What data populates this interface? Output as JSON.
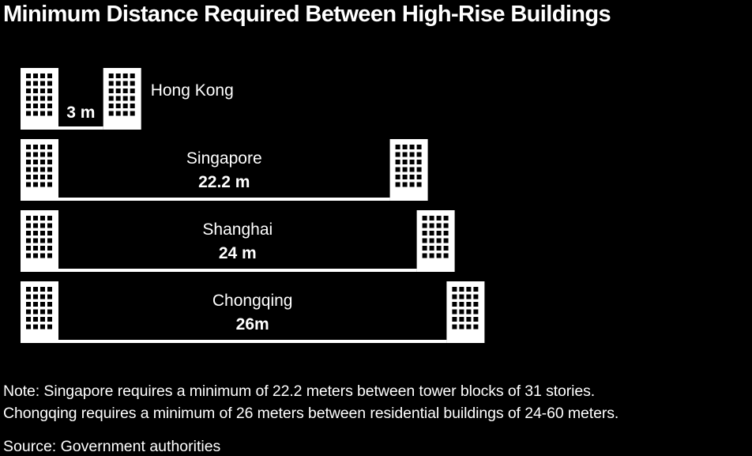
{
  "title": "Minimum Distance Required Between High-Rise Buildings",
  "chart_data": {
    "type": "bar",
    "title": "Minimum Distance Required Between High-Rise Buildings",
    "unit": "m",
    "categories": [
      "Hong Kong",
      "Singapore",
      "Shanghai",
      "Chongqing"
    ],
    "values": [
      3,
      22.2,
      24,
      26
    ],
    "value_labels": [
      "3 m",
      "22.2 m",
      "24 m",
      "26m"
    ],
    "colors": {
      "background": "#000000",
      "building": "#ffffff",
      "window": "#000000",
      "text": "#ffffff"
    }
  },
  "notes": [
    "Note: Singapore requires a minimum of 22.2 meters between tower blocks of 31 stories.",
    "Chongqing requires a minimum of 26 meters between residential buildings of 24-60 meters."
  ],
  "source": "Source: Government authorities"
}
